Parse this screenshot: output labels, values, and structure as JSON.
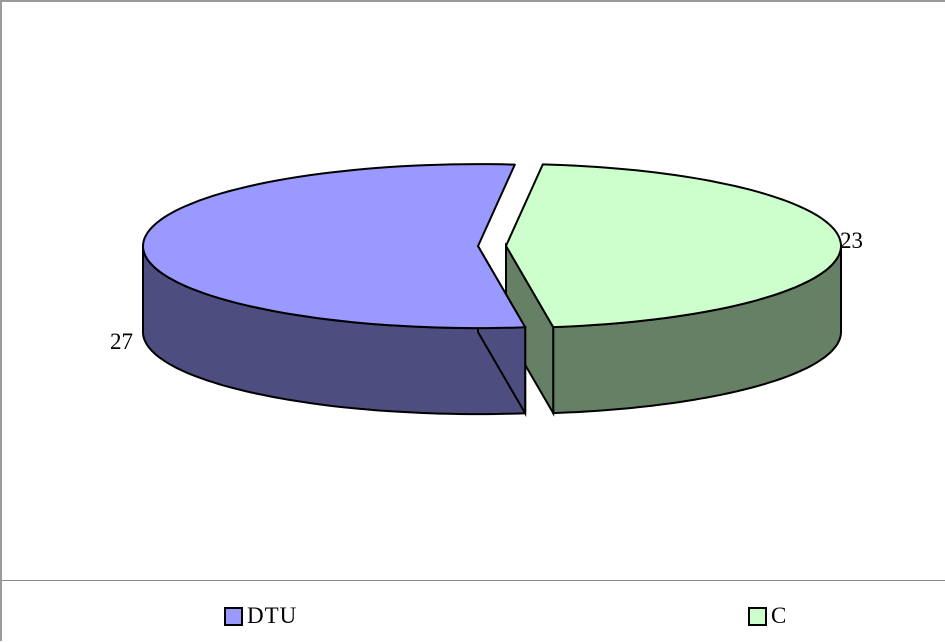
{
  "chart_data": {
    "type": "pie",
    "style": "3d-exploded",
    "title": "",
    "categories": [
      "DTU",
      "C"
    ],
    "values": [
      27,
      23
    ],
    "colors": {
      "DTU": {
        "top": "#9999ff",
        "side": "#4d4d80"
      },
      "C": {
        "top": "#ccffcc",
        "side": "#668066"
      }
    },
    "data_labels": [
      "27",
      "23"
    ],
    "legend": {
      "position": "bottom",
      "entries": [
        "DTU",
        "C"
      ]
    }
  }
}
